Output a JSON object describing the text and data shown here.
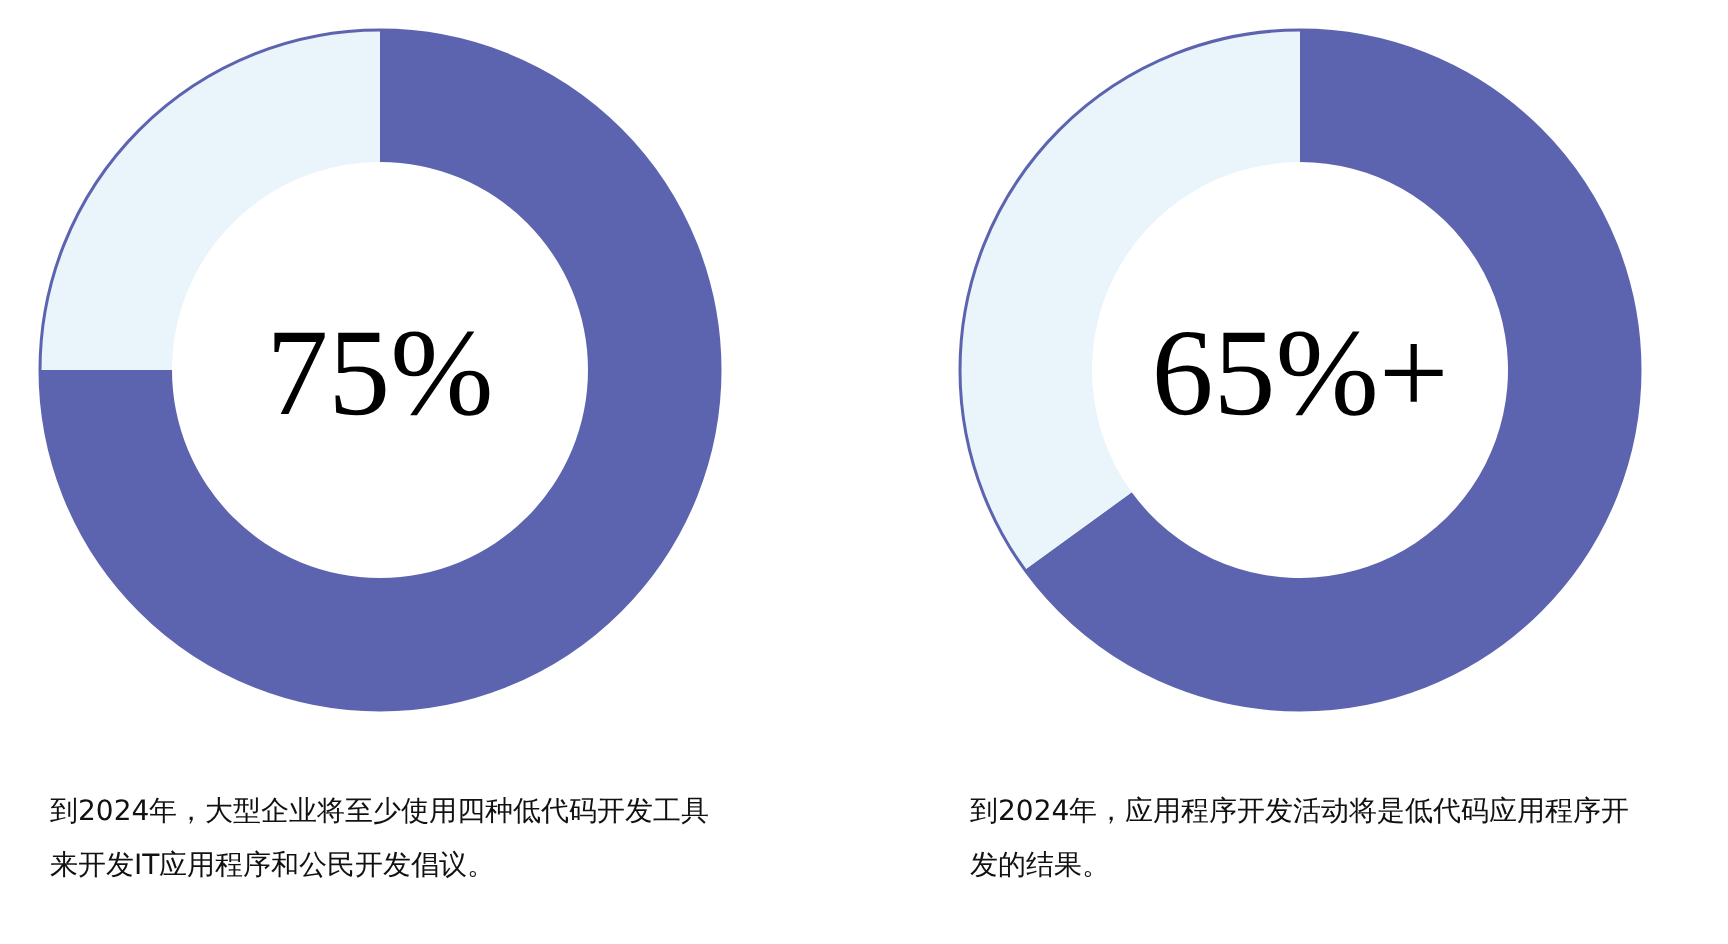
{
  "chart_data": [
    {
      "type": "donut",
      "categories": [
        null,
        null
      ],
      "values": [
        75,
        25
      ],
      "colors": [
        "#5c64b0",
        "#eaf5fb"
      ],
      "annotations": [
        "75%",
        "到2024年，大型企业将至少使用四种低代码开发工具来开发IT应用程序和公民开发倡议。"
      ]
    },
    {
      "type": "donut",
      "categories": [
        null,
        null
      ],
      "values": [
        65,
        35
      ],
      "colors": [
        "#5c64b0",
        "#eaf5fb"
      ],
      "annotations": [
        "65%+",
        "到2024年，应用程序开发活动将是低代码应用程序开发的结果。"
      ]
    }
  ]
}
